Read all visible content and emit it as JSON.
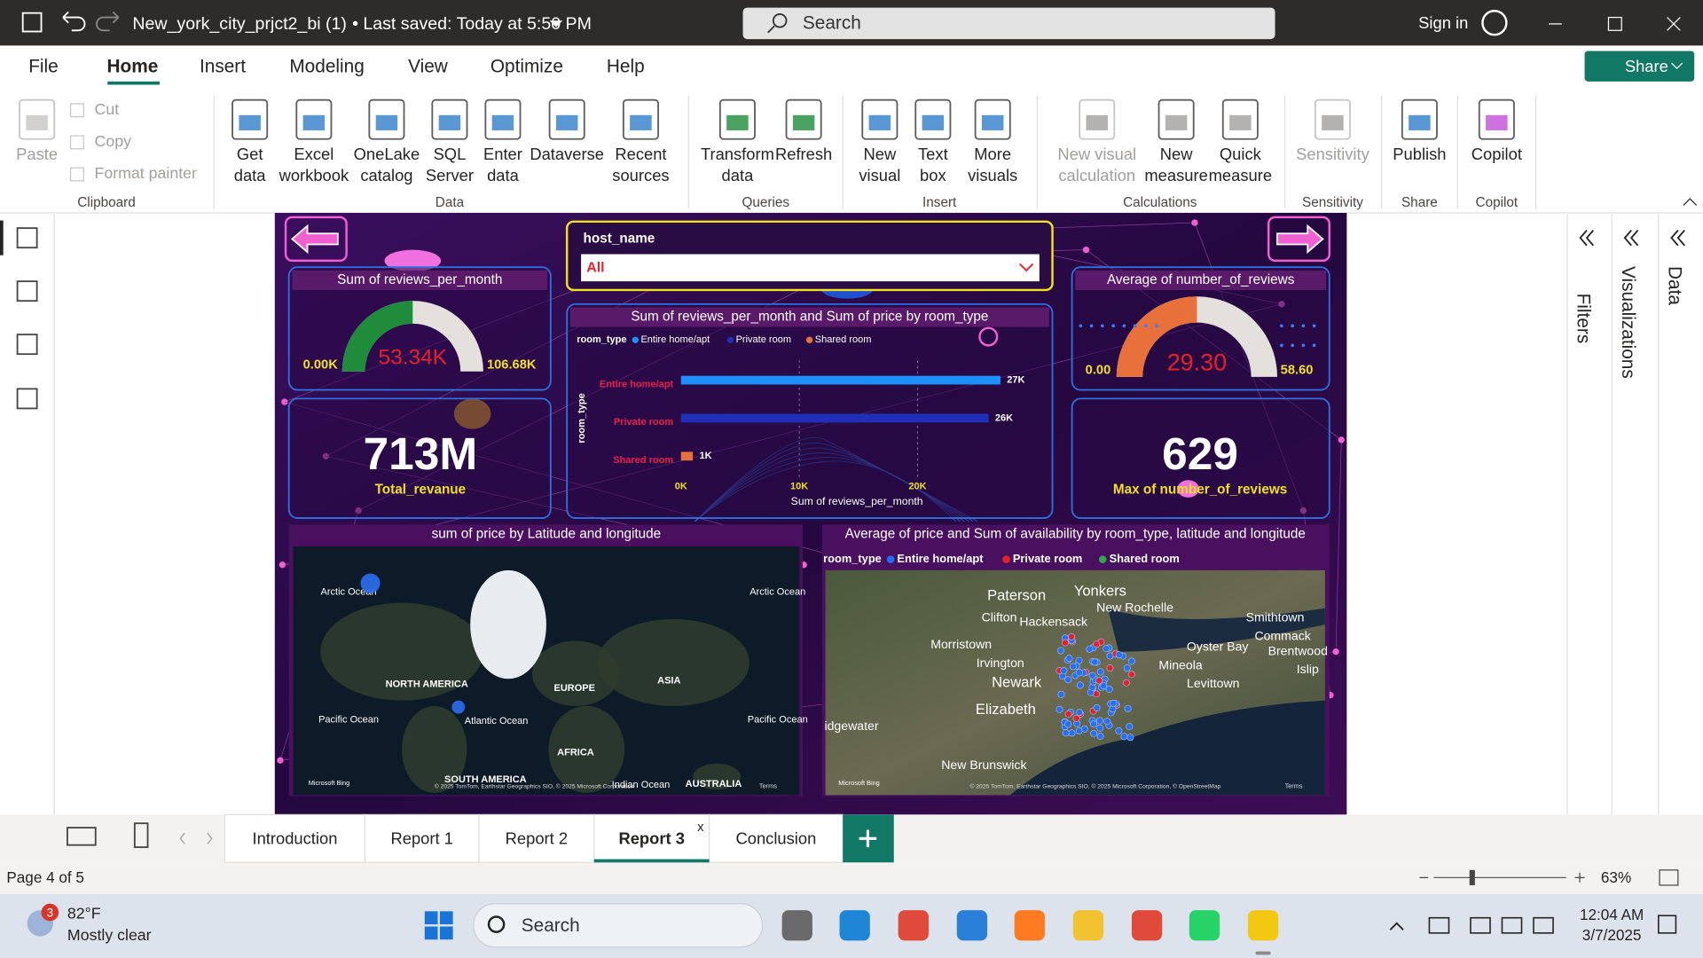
{
  "title_bar": {
    "file_title": "New_york_city_prjct2_bi (1)",
    "save_status": "• Last saved: Today at 5:50 PM",
    "search": "Search",
    "sign_in": "Sign in"
  },
  "menu": {
    "tabs": [
      "File",
      "Home",
      "Insert",
      "Modeling",
      "View",
      "Optimize",
      "Help"
    ],
    "share": "Share"
  },
  "ribbon": {
    "groups": [
      {
        "label": "Clipboard",
        "items": [
          [
            "Paste"
          ],
          [
            "Cut"
          ],
          [
            "Copy"
          ],
          [
            "Format painter"
          ]
        ]
      },
      {
        "label": "Data",
        "items": [
          [
            "Get",
            "data"
          ],
          [
            "Excel",
            "workbook"
          ],
          [
            "OneLake",
            "catalog"
          ],
          [
            "SQL",
            "Server"
          ],
          [
            "Enter",
            "data"
          ],
          [
            "Dataverse"
          ],
          [
            "Recent",
            "sources"
          ]
        ]
      },
      {
        "label": "Queries",
        "items": [
          [
            "Transform",
            "data"
          ],
          [
            "Refresh"
          ]
        ]
      },
      {
        "label": "Insert",
        "items": [
          [
            "New",
            "visual"
          ],
          [
            "Text",
            "box"
          ],
          [
            "More",
            "visuals"
          ]
        ]
      },
      {
        "label": "Calculations",
        "items": [
          [
            "New visual",
            "calculation"
          ],
          [
            "New",
            "measure"
          ],
          [
            "Quick",
            "measure"
          ]
        ]
      },
      {
        "label": "Sensitivity",
        "items": [
          [
            "Sensitivity"
          ]
        ]
      },
      {
        "label": "Share",
        "items": [
          [
            "Publish"
          ]
        ]
      },
      {
        "label": "Copilot",
        "items": [
          [
            "Copilot"
          ]
        ]
      }
    ]
  },
  "side_panes": [
    "Filters",
    "Visualizations",
    "Data"
  ],
  "report": {
    "slicer": {
      "title": "host_name",
      "selection": "All"
    },
    "gauge_reviews": {
      "title": "Sum of reviews_per_month",
      "min": {
        "value": 0,
        "label": "0.00K"
      },
      "max": {
        "value": 106680,
        "label": "106.68K"
      },
      "value": {
        "value": 53340,
        "label": "53.34K"
      },
      "color": "#1e8c3a"
    },
    "card_revenue": {
      "value": "713M",
      "label": "Total_revanue"
    },
    "bar_chart": {
      "type": "bar",
      "title": "Sum of reviews_per_month and Sum of price by room_type",
      "legend_title": "room_type",
      "categories": [
        "Entire home/apt",
        "Private room",
        "Shared room"
      ],
      "values": [
        27000,
        26000,
        1000
      ],
      "value_labels": [
        "27K",
        "26K",
        "1K"
      ],
      "colors": [
        "#1e8fff",
        "#1f2fb8",
        "#e8703a"
      ],
      "xlabel": "Sum of reviews_per_month",
      "ylabel": "room_type",
      "xlim": [
        0,
        28000
      ],
      "xticks": [
        {
          "value": 0,
          "label": "0K"
        },
        {
          "value": 10000,
          "label": "10K"
        },
        {
          "value": 20000,
          "label": "20K"
        }
      ],
      "grid": true
    },
    "gauge_reviews_avg": {
      "title": "Average of number_of_reviews",
      "min": {
        "value": 0,
        "label": "0.00"
      },
      "max": {
        "value": 58.6,
        "label": "58.60"
      },
      "value": {
        "value": 29.3,
        "label": "29.30"
      },
      "color": "#e8703a"
    },
    "card_max": {
      "value": "629",
      "label": "Max of number_of_reviews"
    },
    "map_world": {
      "title": "sum of price by Latitude and longitude",
      "labels": [
        "Arctic Ocean",
        "Arctic Ocean",
        "NORTH AMERICA",
        "EUROPE",
        "ASIA",
        "Pacific Ocean",
        "Atlantic Ocean",
        "Pacific Ocean",
        "AFRICA",
        "SOUTH AMERICA",
        "Indian Ocean",
        "AUSTRALIA"
      ],
      "provider": "Microsoft Bing",
      "attribution": "© 2025 TomTom, Earthstar Geographics SIO, © 2025 Microsoft Corporation",
      "terms": "Terms"
    },
    "map_nyc": {
      "title": "Average of price and Sum of availability by room_type, latitude and longitude",
      "legend_title": "room_type",
      "legend": [
        {
          "name": "Entire home/apt",
          "color": "#1e6fff"
        },
        {
          "name": "Private room",
          "color": "#e8202a"
        },
        {
          "name": "Shared room",
          "color": "#2ea84a"
        }
      ],
      "labels": [
        "Paterson",
        "Yonkers",
        "New Rochelle",
        "Clifton",
        "Hackensack",
        "Smithtown",
        "Commack",
        "Brentwood",
        "Morristown",
        "Irvington",
        "Oyster Bay",
        "Mineola",
        "Newark",
        "Levittown",
        "Islip",
        "Elizabeth",
        "idgewater",
        "New Brunswick"
      ],
      "provider": "Microsoft Bing",
      "attribution": "© 2025 TomTom, Earthstar Geographics SIO, © 2025 Microsoft Corporation, © OpenStreetMap",
      "terms": "Terms"
    }
  },
  "page_tabs": {
    "tabs": [
      "Introduction",
      "Report 1",
      "Report 2",
      "Report 3",
      "Conclusion"
    ],
    "close": "x"
  },
  "status_bar": {
    "page": "Page 4 of 5",
    "zoom": "63%"
  },
  "taskbar": {
    "weather_badge": "3",
    "temperature": "82°F",
    "condition": "Mostly clear",
    "search": "Search",
    "time": "12:04 AM",
    "date": "3/7/2025"
  }
}
